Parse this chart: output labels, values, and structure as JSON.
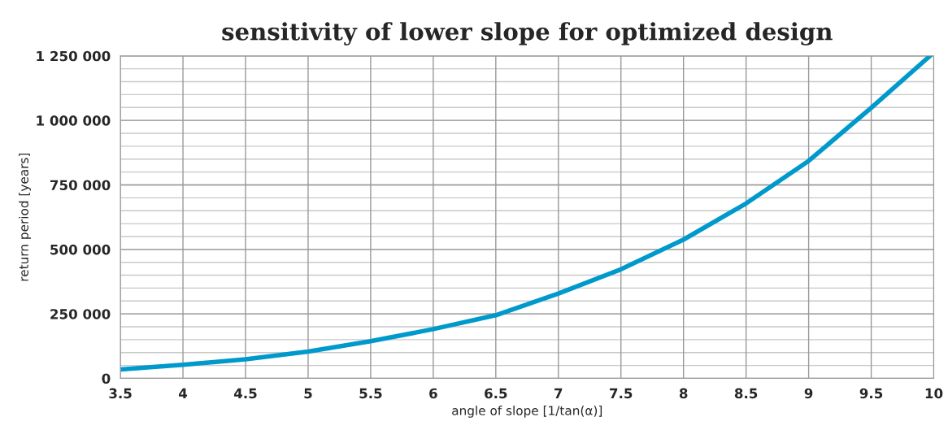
{
  "chart_data": {
    "type": "line",
    "title": "sensitivity of lower slope for optimized design",
    "xlabel": "angle of slope [1/tan(α)]",
    "ylabel": "return period [years]",
    "x": [
      3.5,
      4,
      4.5,
      5,
      5.5,
      6,
      6.5,
      7,
      7.5,
      8,
      8.5,
      9,
      9.5,
      9.97
    ],
    "series": [
      {
        "color": "#0099cc",
        "values": [
          35000,
          53000,
          74000,
          104000,
          144000,
          191000,
          245000,
          329000,
          423000,
          538000,
          678000,
          843000,
          1049000,
          1250000
        ]
      }
    ],
    "xlim": [
      3.5,
      10
    ],
    "xticks": [
      3.5,
      4,
      4.5,
      5,
      5.5,
      6,
      6.5,
      7,
      7.5,
      8,
      8.5,
      9,
      9.5,
      10
    ],
    "ylim": [
      0,
      1250000
    ],
    "yticks": [
      {
        "value": 0,
        "label": "0"
      },
      {
        "value": 250000,
        "label": "250 000"
      },
      {
        "value": 500000,
        "label": "500 000"
      },
      {
        "value": 750000,
        "label": "750 000"
      },
      {
        "value": 1000000,
        "label": "1 000 000"
      },
      {
        "value": 1250000,
        "label": "1 250 000"
      }
    ],
    "grid": true,
    "marker": "none",
    "line_style": "solid"
  }
}
